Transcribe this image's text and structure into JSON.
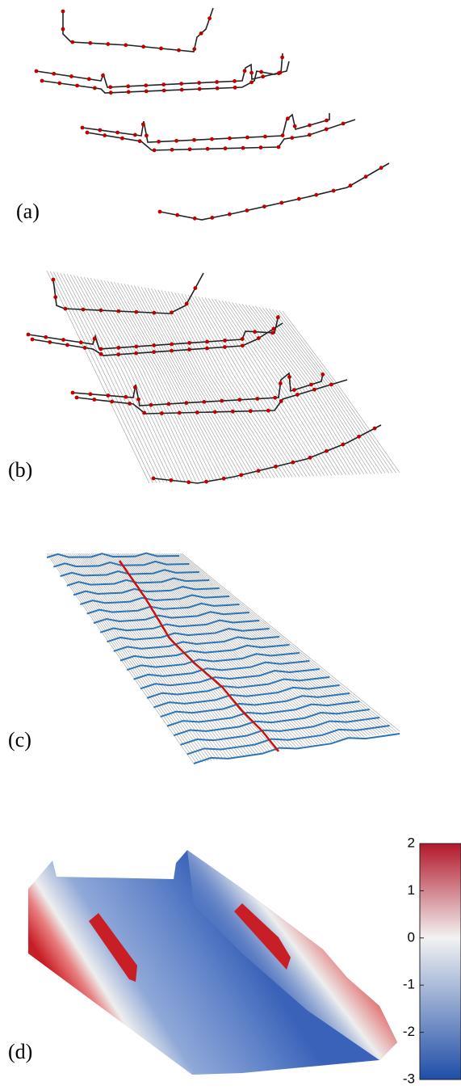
{
  "panels": [
    {
      "label": "(a)"
    },
    {
      "label": "(b)"
    },
    {
      "label": "(c)"
    },
    {
      "label": "(d)"
    }
  ],
  "colorbar": {
    "range": [
      -3,
      2
    ],
    "ticks": [
      2,
      1,
      0,
      -1,
      -2,
      -3
    ]
  }
}
